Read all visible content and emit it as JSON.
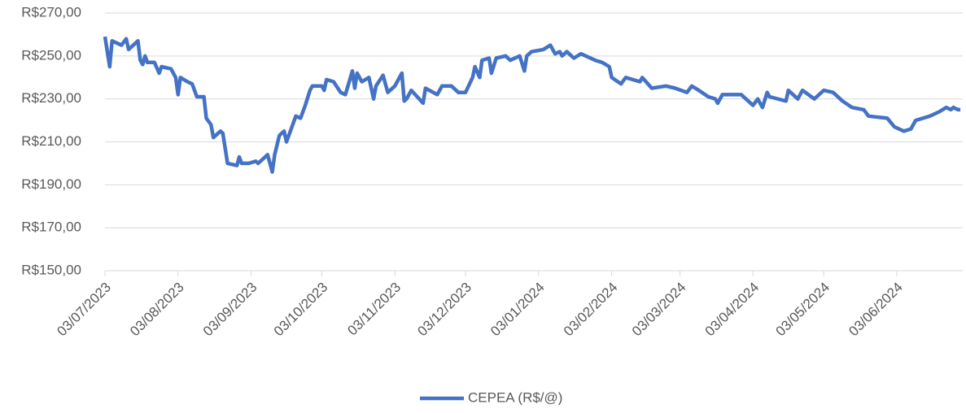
{
  "chart_data": {
    "type": "line",
    "x": [
      "03/07/2023",
      "05/07/2023",
      "06/07/2023",
      "10/07/2023",
      "12/07/2023",
      "13/07/2023",
      "17/07/2023",
      "18/07/2023",
      "19/07/2023",
      "20/07/2023",
      "21/07/2023",
      "24/07/2023",
      "26/07/2023",
      "27/07/2023",
      "31/07/2023",
      "02/08/2023",
      "03/08/2023",
      "04/08/2023",
      "07/08/2023",
      "09/08/2023",
      "11/08/2023",
      "14/08/2023",
      "15/08/2023",
      "17/08/2023",
      "18/08/2023",
      "21/08/2023",
      "22/08/2023",
      "24/08/2023",
      "28/08/2023",
      "29/08/2023",
      "30/08/2023",
      "02/09/2023",
      "05/09/2023",
      "06/09/2023",
      "08/09/2023",
      "10/09/2023",
      "12/09/2023",
      "13/09/2023",
      "15/09/2023",
      "17/09/2023",
      "18/09/2023",
      "20/09/2023",
      "22/09/2023",
      "24/09/2023",
      "26/09/2023",
      "28/09/2023",
      "29/09/2023",
      "03/10/2023",
      "04/10/2023",
      "05/10/2023",
      "08/10/2023",
      "11/10/2023",
      "13/10/2023",
      "16/10/2023",
      "17/10/2023",
      "18/10/2023",
      "20/10/2023",
      "23/10/2023",
      "25/10/2023",
      "26/10/2023",
      "29/10/2023",
      "31/10/2023",
      "03/11/2023",
      "06/11/2023",
      "07/11/2023",
      "08/11/2023",
      "10/11/2023",
      "15/11/2023",
      "16/11/2023",
      "21/11/2023",
      "23/11/2023",
      "27/11/2023",
      "30/11/2023",
      "03/12/2023",
      "06/12/2023",
      "07/12/2023",
      "09/12/2023",
      "10/12/2023",
      "13/12/2023",
      "14/12/2023",
      "16/12/2023",
      "20/12/2023",
      "22/12/2023",
      "26/12/2023",
      "28/12/2023",
      "29/12/2023",
      "31/12/2023",
      "05/01/2024",
      "08/01/2024",
      "10/01/2024",
      "12/01/2024",
      "13/01/2024",
      "15/01/2024",
      "18/01/2024",
      "21/01/2024",
      "27/01/2024",
      "30/01/2024",
      "02/02/2024",
      "03/02/2024",
      "07/02/2024",
      "09/02/2024",
      "15/02/2024",
      "16/02/2024",
      "20/02/2024",
      "26/02/2024",
      "01/03/2024",
      "06/03/2024",
      "08/03/2024",
      "11/03/2024",
      "15/03/2024",
      "18/03/2024",
      "19/03/2024",
      "21/03/2024",
      "29/03/2024",
      "02/04/2024",
      "03/04/2024",
      "05/04/2024",
      "07/04/2024",
      "09/04/2024",
      "10/04/2024",
      "17/04/2024",
      "18/04/2024",
      "22/04/2024",
      "24/04/2024",
      "29/04/2024",
      "03/05/2024",
      "07/05/2024",
      "11/05/2024",
      "15/05/2024",
      "20/05/2024",
      "22/05/2024",
      "30/05/2024",
      "02/06/2024",
      "06/06/2024",
      "09/06/2024",
      "11/06/2024",
      "17/06/2024",
      "21/06/2024",
      "24/06/2024",
      "26/06/2024",
      "27/06/2024",
      "29/06/2024",
      "30/06/2024"
    ],
    "series": [
      {
        "name": "CEPEA (R$/@)",
        "color": "#4472c4",
        "values": [
          259,
          245,
          257,
          255,
          258,
          253,
          257,
          248,
          246,
          250,
          247,
          247,
          242,
          245,
          244,
          240,
          232,
          240,
          238,
          237,
          231,
          231,
          221,
          218,
          212,
          215,
          214,
          200,
          199,
          203,
          200,
          200,
          201,
          200,
          202,
          204,
          196,
          204,
          213,
          215,
          210,
          216,
          222,
          221,
          227,
          234,
          236,
          236,
          234,
          239,
          238,
          233,
          232,
          243,
          235,
          242,
          238,
          240,
          230,
          236,
          241,
          233,
          236,
          242,
          229,
          230,
          234,
          228,
          235,
          232,
          236,
          236,
          233,
          233,
          240,
          245,
          240,
          248,
          249,
          242,
          249,
          250,
          248,
          250,
          243,
          250,
          252,
          253,
          255,
          251,
          252,
          250,
          252,
          249,
          251,
          248,
          247,
          245,
          240,
          237,
          240,
          238,
          240,
          235,
          236,
          235,
          233,
          236,
          234,
          231,
          230,
          228,
          232,
          232,
          228,
          227,
          230,
          226,
          233,
          231,
          229,
          234,
          230,
          234,
          230,
          234,
          233,
          229,
          226,
          225,
          222,
          221,
          217,
          215,
          216,
          220,
          222,
          224,
          226,
          225,
          226,
          225,
          225
        ]
      }
    ],
    "xlim": [
      "03/07/2023",
      "01/07/2024"
    ],
    "xticks": [
      "03/07/2023",
      "03/08/2023",
      "03/09/2023",
      "03/10/2023",
      "03/11/2023",
      "03/12/2023",
      "03/01/2024",
      "03/02/2024",
      "03/03/2024",
      "03/04/2024",
      "03/05/2024",
      "03/06/2024"
    ],
    "ylim": [
      150,
      270
    ],
    "yticks": [
      {
        "value": 150,
        "label": "R$150,00"
      },
      {
        "value": 170,
        "label": "R$170,00"
      },
      {
        "value": 190,
        "label": "R$190,00"
      },
      {
        "value": 210,
        "label": "R$210,00"
      },
      {
        "value": 230,
        "label": "R$230,00"
      },
      {
        "value": 250,
        "label": "R$250,00"
      },
      {
        "value": 270,
        "label": "R$270,00"
      }
    ],
    "grid": true,
    "legend": "bottom"
  }
}
